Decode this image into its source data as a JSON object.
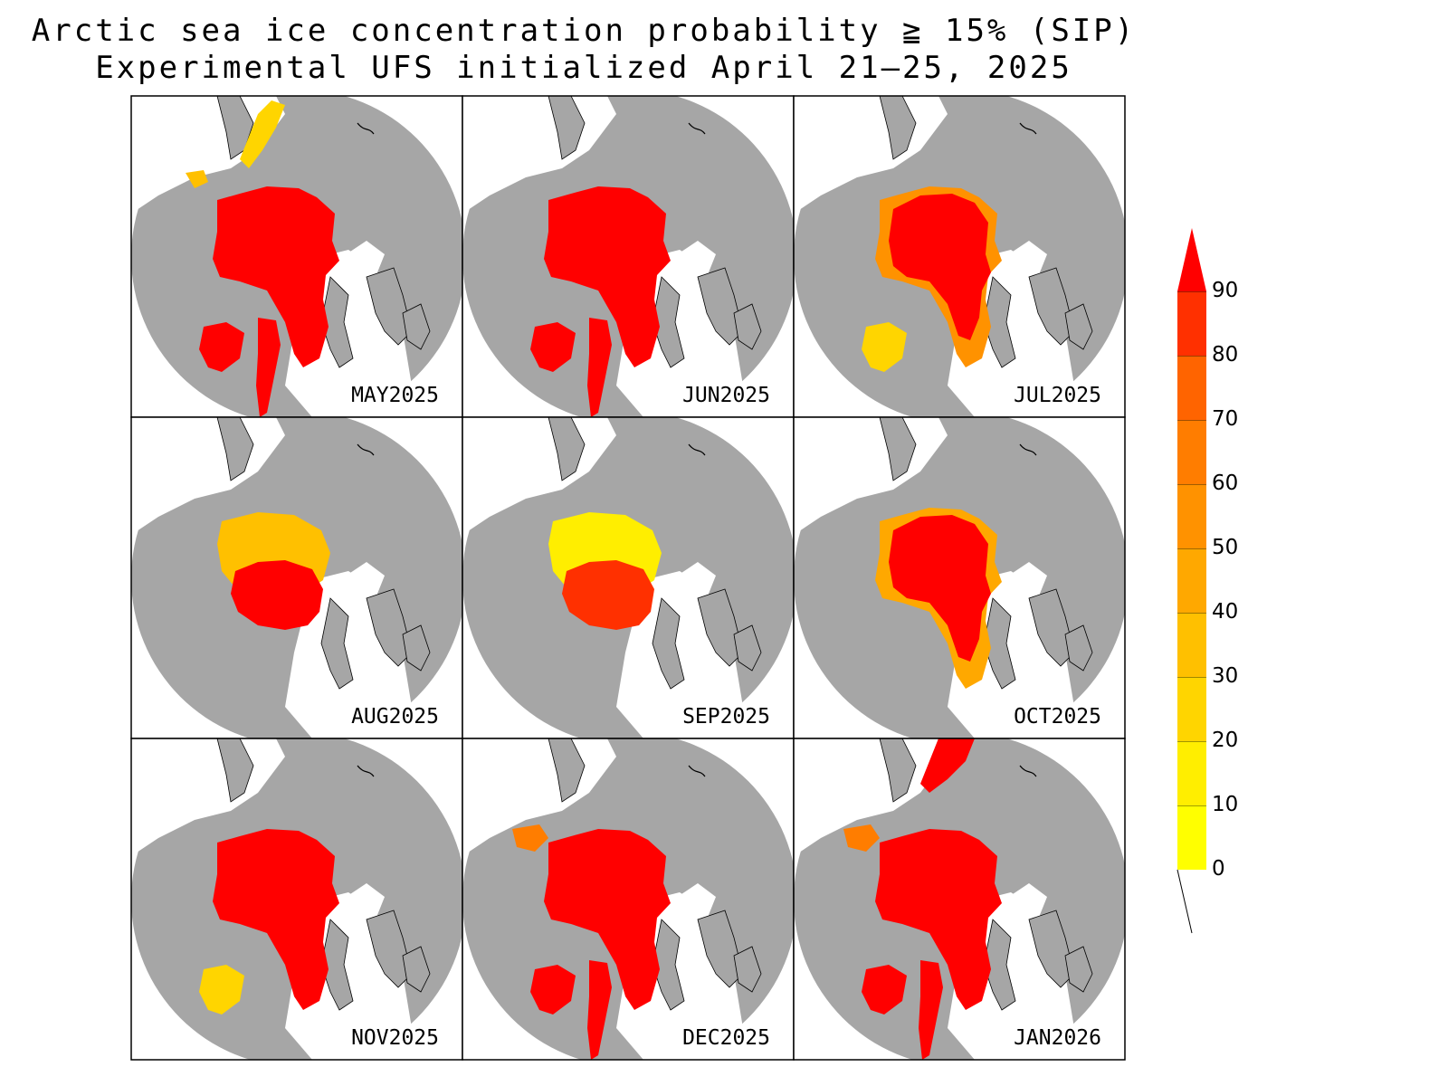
{
  "title": {
    "line1": "Arctic sea ice concentration probability ≧ 15% (SIP)",
    "line2": "Experimental UFS initialized April 21–25, 2025"
  },
  "colors": {
    "land": "#a6a6a6",
    "ocean": "#ffffff",
    "high": "#ff0000",
    "scale": [
      "#ffff00",
      "#ffee00",
      "#ffd500",
      "#ffc000",
      "#ffa800",
      "#ff9200",
      "#ff7d00",
      "#ff6400",
      "#ff3000",
      "#ff0000"
    ]
  },
  "panels": [
    {
      "label": "MAY2025",
      "ice": "full",
      "extra": [
        "pacific",
        "labrador",
        "hudson",
        "okhotsk_small"
      ]
    },
    {
      "label": "JUN2025",
      "ice": "full",
      "extra": [
        "hudson",
        "labrador"
      ]
    },
    {
      "label": "JUL2025",
      "ice": "full_reduced",
      "extra": [
        "hudson_yellow"
      ]
    },
    {
      "label": "AUG2025",
      "ice": "min_orange",
      "extra": []
    },
    {
      "label": "SEP2025",
      "ice": "min_yellow",
      "extra": []
    },
    {
      "label": "OCT2025",
      "ice": "growing",
      "extra": []
    },
    {
      "label": "NOV2025",
      "ice": "full",
      "extra": [
        "hudson_yellow"
      ]
    },
    {
      "label": "DEC2025",
      "ice": "full",
      "extra": [
        "hudson",
        "labrador",
        "okhotsk"
      ]
    },
    {
      "label": "JAN2026",
      "ice": "full",
      "extra": [
        "hudson",
        "labrador",
        "okhotsk",
        "pacific_big"
      ]
    }
  ],
  "colorbar": {
    "ticks": [
      "0",
      "10",
      "20",
      "30",
      "40",
      "50",
      "60",
      "70",
      "80",
      "90"
    ]
  }
}
